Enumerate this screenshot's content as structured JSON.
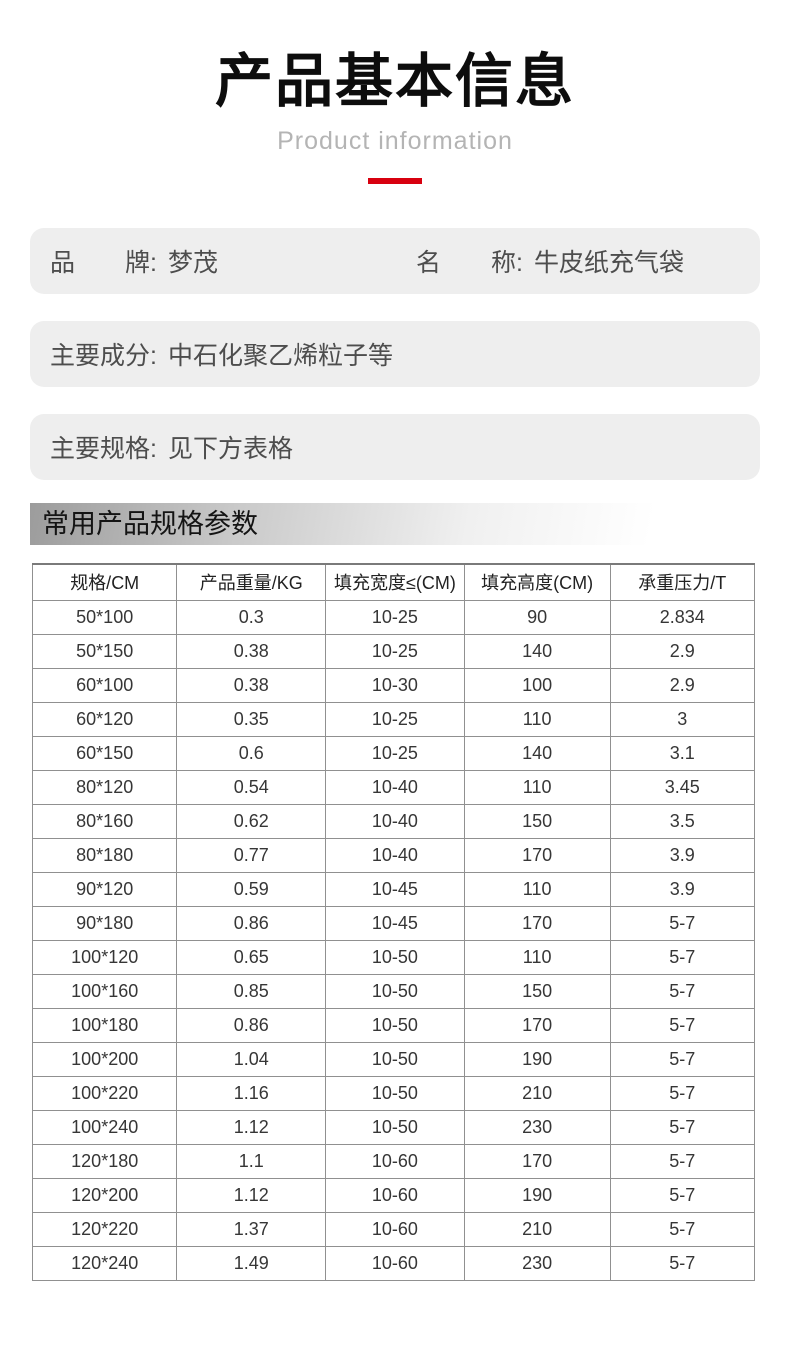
{
  "page": {
    "background_color": "#ffffff",
    "accent_color": "#d8000f",
    "info_box_color": "#eeeeee"
  },
  "header": {
    "title": "产品基本信息",
    "subtitle": "Product information"
  },
  "info_boxes": [
    {
      "fields": [
        {
          "label": "品牌",
          "colon": ":",
          "value": "梦茂"
        },
        {
          "label": "名称",
          "colon": ":",
          "value": "牛皮纸充气袋"
        }
      ]
    },
    {
      "fields": [
        {
          "label": "主要成分",
          "colon": ":",
          "value": "中石化聚乙烯粒子等"
        }
      ]
    },
    {
      "fields": [
        {
          "label": "主要规格",
          "colon": ":",
          "value": "见下方表格"
        }
      ]
    }
  ],
  "spec_section": {
    "title": "常用产品规格参数",
    "columns": [
      "规格/CM",
      "产品重量/KG",
      "填充宽度≤(CM)",
      "填充高度(CM)",
      "承重压力/T"
    ],
    "rows": [
      [
        "50*100",
        "0.3",
        "10-25",
        "90",
        "2.834"
      ],
      [
        "50*150",
        "0.38",
        "10-25",
        "140",
        "2.9"
      ],
      [
        "60*100",
        "0.38",
        "10-30",
        "100",
        "2.9"
      ],
      [
        "60*120",
        "0.35",
        "10-25",
        "110",
        "3"
      ],
      [
        "60*150",
        "0.6",
        "10-25",
        "140",
        "3.1"
      ],
      [
        "80*120",
        "0.54",
        "10-40",
        "110",
        "3.45"
      ],
      [
        "80*160",
        "0.62",
        "10-40",
        "150",
        "3.5"
      ],
      [
        "80*180",
        "0.77",
        "10-40",
        "170",
        "3.9"
      ],
      [
        "90*120",
        "0.59",
        "10-45",
        "110",
        "3.9"
      ],
      [
        "90*180",
        "0.86",
        "10-45",
        "170",
        "5-7"
      ],
      [
        "100*120",
        "0.65",
        "10-50",
        "110",
        "5-7"
      ],
      [
        "100*160",
        "0.85",
        "10-50",
        "150",
        "5-7"
      ],
      [
        "100*180",
        "0.86",
        "10-50",
        "170",
        "5-7"
      ],
      [
        "100*200",
        "1.04",
        "10-50",
        "190",
        "5-7"
      ],
      [
        "100*220",
        "1.16",
        "10-50",
        "210",
        "5-7"
      ],
      [
        "100*240",
        "1.12",
        "10-50",
        "230",
        "5-7"
      ],
      [
        "120*180",
        "1.1",
        "10-60",
        "170",
        "5-7"
      ],
      [
        "120*200",
        "1.12",
        "10-60",
        "190",
        "5-7"
      ],
      [
        "120*220",
        "1.37",
        "10-60",
        "210",
        "5-7"
      ],
      [
        "120*240",
        "1.49",
        "10-60",
        "230",
        "5-7"
      ]
    ]
  }
}
